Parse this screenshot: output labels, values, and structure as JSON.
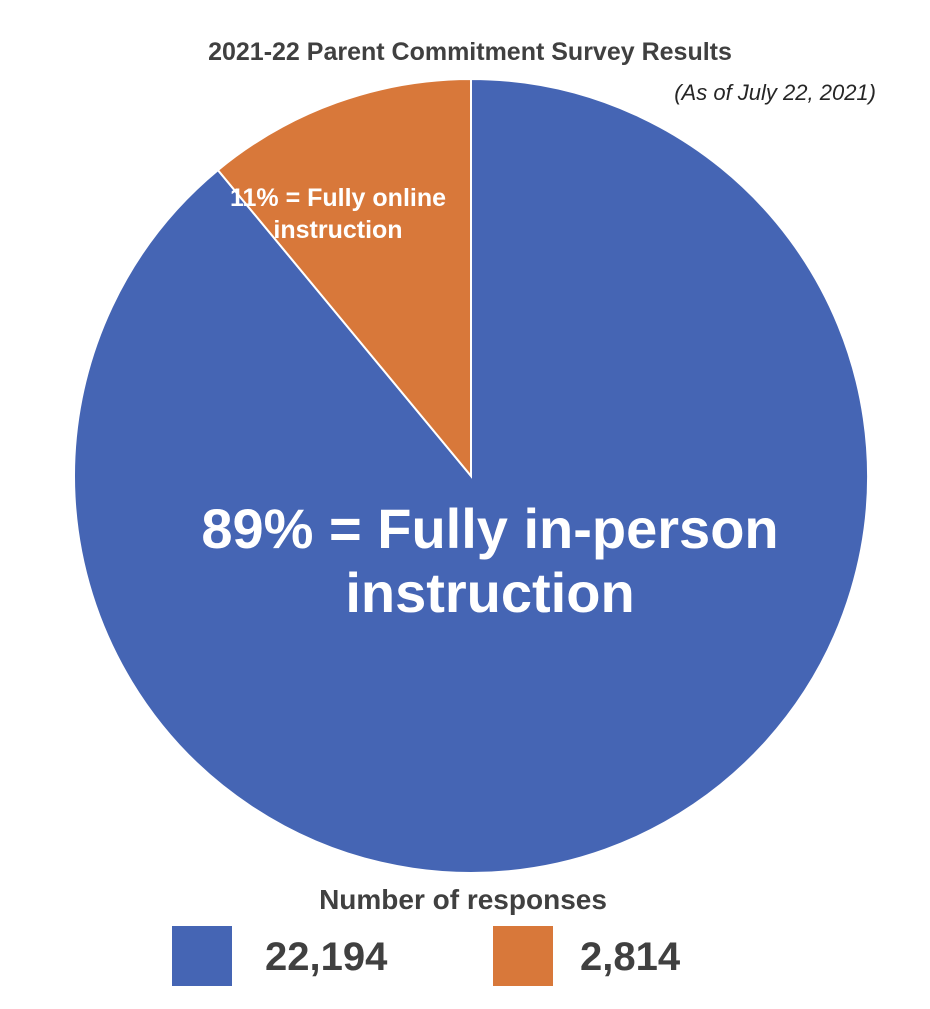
{
  "chart_data": {
    "type": "pie",
    "title": "2021-22 Parent Commitment Survey Results",
    "subtitle": "(As of July 22, 2021)",
    "slices": [
      {
        "percent": 89,
        "label_lines": [
          "89% = Fully in-person",
          "instruction"
        ],
        "color": "#4565B4"
      },
      {
        "percent": 11,
        "label_lines": [
          "11% = Fully online",
          "instruction"
        ],
        "color": "#D8783A"
      }
    ],
    "legend": {
      "title": "Number of responses",
      "position": "bottom",
      "entries": [
        {
          "value": "22,194",
          "color": "#4565B4"
        },
        {
          "value": "2,814",
          "color": "#D8783A"
        }
      ]
    }
  }
}
